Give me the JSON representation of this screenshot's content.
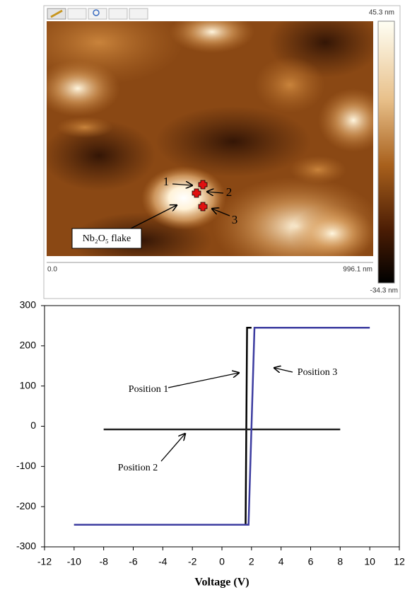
{
  "afm_image": {
    "scale_max": "45.3 nm",
    "scale_min": "-34.3 nm",
    "x_axis_start": "0.0",
    "x_axis_end": "996.1 nm",
    "point_labels": [
      "1",
      "2",
      "3"
    ],
    "flake_label": "Nb₂O₅ flake"
  },
  "chart_data": {
    "type": "line",
    "x_label": "Voltage (V)",
    "xlim": [
      -12,
      12
    ],
    "xticks": [
      -12,
      -10,
      -8,
      -6,
      -4,
      -2,
      0,
      2,
      4,
      6,
      8,
      10,
      12
    ],
    "ylim": [
      -300,
      300
    ],
    "yticks": [
      -300,
      -200,
      -100,
      0,
      100,
      200,
      300
    ],
    "series": [
      {
        "name": "Position 1",
        "color": "#000000",
        "x": [
          -10,
          1.6,
          1.7,
          2.0
        ],
        "values": [
          -245,
          -245,
          245,
          245
        ]
      },
      {
        "name": "Position 2",
        "color": "#222222",
        "x": [
          -8,
          8
        ],
        "values": [
          -8,
          -8
        ]
      },
      {
        "name": "Position 3",
        "color": "#3c3ca0",
        "x": [
          -10,
          1.8,
          2.2,
          10
        ],
        "values": [
          -245,
          -245,
          245,
          245
        ]
      }
    ]
  }
}
